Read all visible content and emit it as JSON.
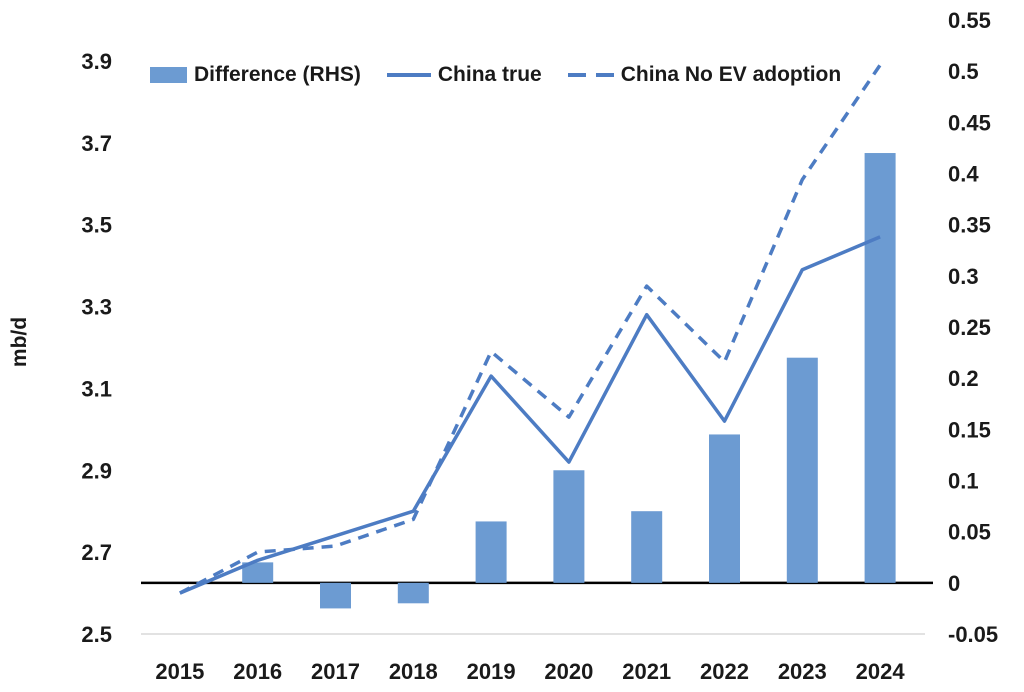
{
  "chart_data": {
    "type": "combo",
    "title": "",
    "categories": [
      "2015",
      "2016",
      "2017",
      "2018",
      "2019",
      "2020",
      "2021",
      "2022",
      "2023",
      "2024"
    ],
    "left_axis": {
      "label": "mb/d",
      "min": 2.5,
      "max": 4.0,
      "ticks": [
        "3.9",
        "3.7",
        "3.5",
        "3.3",
        "3.1",
        "2.9",
        "2.7",
        "2.5"
      ]
    },
    "right_axis": {
      "min": -0.05,
      "max": 0.55,
      "ticks": [
        "0.55",
        "0.5",
        "0.45",
        "0.4",
        "0.35",
        "0.3",
        "0.25",
        "0.2",
        "0.15",
        "0.1",
        "0.05",
        "0",
        "-0.05"
      ]
    },
    "series": [
      {
        "name": "Difference (RHS)",
        "type": "bar",
        "axis": "right",
        "values": [
          0,
          0.02,
          -0.025,
          -0.02,
          0.06,
          0.11,
          0.07,
          0.145,
          0.22,
          0.42
        ]
      },
      {
        "name": "China true",
        "type": "line",
        "style": "solid",
        "axis": "left",
        "values": [
          2.6,
          2.68,
          2.74,
          2.8,
          3.13,
          2.92,
          3.28,
          3.02,
          3.39,
          3.47
        ]
      },
      {
        "name": "China No EV adoption",
        "type": "line",
        "style": "dashed",
        "axis": "left",
        "values": [
          2.6,
          2.7,
          2.715,
          2.78,
          3.19,
          3.03,
          3.35,
          3.165,
          3.61,
          3.89
        ]
      }
    ],
    "colors": {
      "bar": "#6c9bd2",
      "line": "#4d7cc3",
      "zero_line": "#000000",
      "bottom_gridline": "#d9d9d9",
      "text": "#1a1a1a"
    },
    "legend_position": "top",
    "grid": "off"
  }
}
